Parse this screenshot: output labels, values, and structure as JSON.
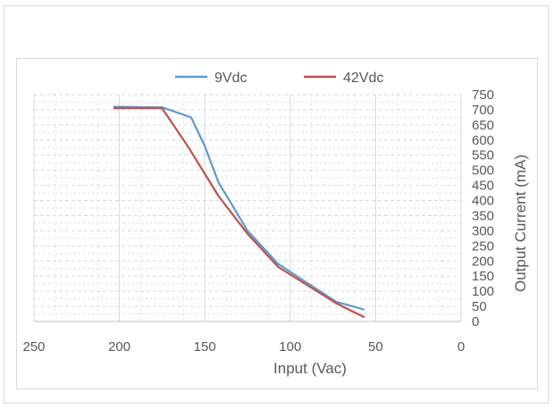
{
  "chart_data": {
    "type": "line",
    "title": "",
    "xlabel": "Input (Vac)",
    "ylabel": "Output Current (mA)",
    "x_reversed": true,
    "xlim": [
      0,
      250
    ],
    "ylim": [
      0,
      750
    ],
    "x_ticks": [
      250,
      200,
      150,
      100,
      50,
      0
    ],
    "y_ticks": [
      0,
      50,
      100,
      150,
      200,
      250,
      300,
      350,
      400,
      450,
      500,
      550,
      600,
      650,
      700,
      750
    ],
    "grid": true,
    "legend_position": "top",
    "series": [
      {
        "name": "9Vdc",
        "color": "#5b9bd5",
        "points": [
          [
            203,
            710
          ],
          [
            175,
            708
          ],
          [
            158,
            675
          ],
          [
            150,
            580
          ],
          [
            142,
            460
          ],
          [
            125,
            300
          ],
          [
            107,
            190
          ],
          [
            73,
            65
          ],
          [
            57,
            40
          ]
        ]
      },
      {
        "name": "42Vdc",
        "color": "#c0504d",
        "points": [
          [
            203,
            705
          ],
          [
            175,
            705
          ],
          [
            160,
            580
          ],
          [
            142,
            415
          ],
          [
            125,
            290
          ],
          [
            107,
            180
          ],
          [
            73,
            60
          ],
          [
            57,
            15
          ]
        ]
      }
    ]
  }
}
